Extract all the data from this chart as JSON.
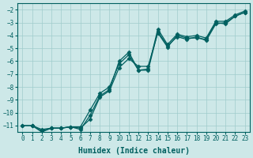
{
  "xlabel": "Humidex (Indice chaleur)",
  "xlim": [
    -0.5,
    23.5
  ],
  "ylim": [
    -11.5,
    -1.5
  ],
  "yticks": [
    -11,
    -10,
    -9,
    -8,
    -7,
    -6,
    -5,
    -4,
    -3,
    -2
  ],
  "xticks": [
    0,
    1,
    2,
    3,
    4,
    5,
    6,
    7,
    8,
    9,
    10,
    11,
    12,
    13,
    14,
    15,
    16,
    17,
    18,
    19,
    20,
    21,
    22,
    23
  ],
  "bg_color": "#cde8e8",
  "grid_color": "#a0cccc",
  "line_color": "#006060",
  "line1_x": [
    0,
    1,
    2,
    3,
    4,
    5,
    6,
    7,
    8,
    9,
    10,
    11,
    12,
    13,
    14,
    15,
    16,
    17,
    18,
    19,
    20,
    21,
    22,
    23
  ],
  "line1_y": [
    -11,
    -11,
    -11.4,
    -11.2,
    -11.2,
    -11.1,
    -11.1,
    -9.8,
    -8.5,
    -8.0,
    -6.2,
    -5.5,
    -6.7,
    -6.7,
    -3.7,
    -4.8,
    -4.1,
    -4.3,
    -4.1,
    -4.4,
    -3.1,
    -3.0,
    -2.5,
    -2.2
  ],
  "line2_x": [
    1,
    2,
    3,
    4,
    5,
    6,
    7,
    8,
    9,
    10,
    11,
    12,
    13,
    14,
    15,
    16,
    17,
    18,
    19,
    20,
    21,
    22,
    23
  ],
  "line2_y": [
    -11,
    -11.5,
    -11.2,
    -11.2,
    -11.1,
    -11.2,
    -10.5,
    -8.8,
    -8.3,
    -6.5,
    -5.8,
    -6.4,
    -6.4,
    -3.8,
    -4.9,
    -4.0,
    -4.2,
    -4.2,
    -4.3,
    -3.0,
    -3.1,
    -2.5,
    -2.2
  ],
  "line3_x": [
    0,
    1,
    2,
    3,
    4,
    5,
    6,
    7,
    8,
    9,
    10,
    11,
    12,
    13,
    14,
    15,
    16,
    17,
    18,
    19,
    20,
    21,
    22,
    23
  ],
  "line3_y": [
    -11,
    -11,
    -11.3,
    -11.2,
    -11.2,
    -11.1,
    -11.3,
    -10.2,
    -8.7,
    -8.2,
    -6.0,
    -5.3,
    -6.7,
    -6.6,
    -3.5,
    -4.7,
    -3.9,
    -4.1,
    -4.0,
    -4.2,
    -2.9,
    -2.9,
    -2.4,
    -2.1
  ],
  "marker": "D",
  "markersize": 2.5,
  "linewidth": 0.9,
  "tick_fontsize": 5.5,
  "xlabel_fontsize": 7,
  "font_family": "monospace"
}
